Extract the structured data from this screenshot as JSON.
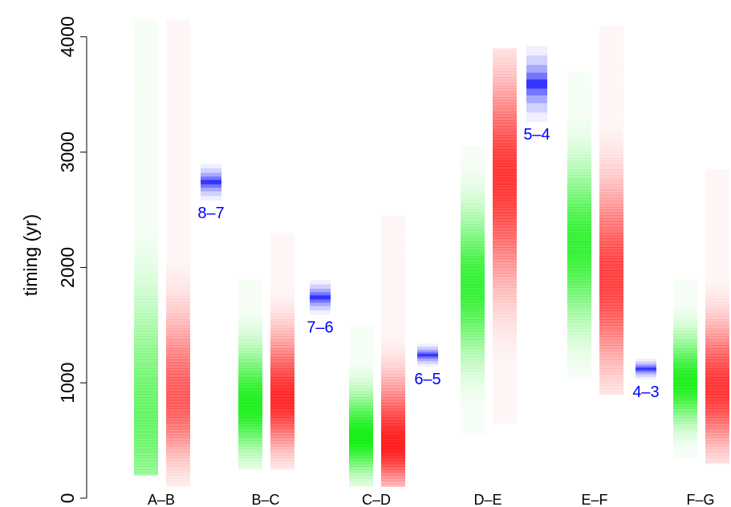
{
  "chart_data": {
    "type": "density-strips",
    "ylabel": "timing (yr)",
    "ylim": [
      0,
      4200
    ],
    "yticks": [
      0,
      1000,
      2000,
      3000,
      4000
    ],
    "categories": [
      "A–B",
      "B–C",
      "C–D",
      "D–E",
      "E–F",
      "F–G"
    ],
    "colors": {
      "green": "#00ee00",
      "red": "#ff0000",
      "blue": "#0000ff"
    },
    "green_strips": [
      {
        "category": "A–B",
        "range": [
          200,
          4150
        ],
        "mode": 700,
        "spread_low": 550,
        "spread_high": 700,
        "peak": 0.55
      },
      {
        "category": "B–C",
        "range": [
          250,
          1900
        ],
        "mode": 800,
        "spread_low": 260,
        "spread_high": 330,
        "peak": 0.85
      },
      {
        "category": "C–D",
        "range": [
          100,
          1500
        ],
        "mode": 520,
        "spread_low": 200,
        "spread_high": 260,
        "peak": 0.9
      },
      {
        "category": "D–E",
        "range": [
          550,
          3050
        ],
        "mode": 1850,
        "spread_low": 420,
        "spread_high": 420,
        "peak": 0.75
      },
      {
        "category": "E–F",
        "range": [
          1050,
          3700
        ],
        "mode": 2200,
        "spread_low": 450,
        "spread_high": 450,
        "peak": 0.75
      },
      {
        "category": "F–G",
        "range": [
          350,
          1900
        ],
        "mode": 1000,
        "spread_low": 230,
        "spread_high": 270,
        "peak": 0.85
      }
    ],
    "red_strips": [
      {
        "category": "A–B",
        "range": [
          100,
          4150
        ],
        "mode": 850,
        "spread_low": 350,
        "spread_high": 500,
        "peak": 0.6
      },
      {
        "category": "B–C",
        "range": [
          250,
          2300
        ],
        "mode": 850,
        "spread_low": 280,
        "spread_high": 380,
        "peak": 0.8
      },
      {
        "category": "C–D",
        "range": [
          100,
          2450
        ],
        "mode": 450,
        "spread_low": 220,
        "spread_high": 380,
        "peak": 0.85
      },
      {
        "category": "D–E",
        "range": [
          650,
          3900
        ],
        "mode": 2800,
        "spread_low": 650,
        "spread_high": 550,
        "peak": 0.75
      },
      {
        "category": "E–F",
        "range": [
          900,
          4100
        ],
        "mode": 1900,
        "spread_low": 500,
        "spread_high": 550,
        "peak": 0.7
      },
      {
        "category": "F–G",
        "range": [
          300,
          2850
        ],
        "mode": 950,
        "spread_low": 330,
        "spread_high": 380,
        "peak": 0.75
      }
    ],
    "blue_boxes": [
      {
        "label": "8–7",
        "after": "A–B",
        "center": 2740,
        "halfwidth": 160
      },
      {
        "label": "7–6",
        "after": "B–C",
        "center": 1740,
        "halfwidth": 150
      },
      {
        "label": "6–5",
        "after": "C–D",
        "center": 1240,
        "halfwidth": 100
      },
      {
        "label": "5–4",
        "after": "D–E",
        "center": 3590,
        "halfwidth": 330
      },
      {
        "label": "4–3",
        "after": "E–F",
        "center": 1120,
        "halfwidth": 90
      }
    ]
  }
}
